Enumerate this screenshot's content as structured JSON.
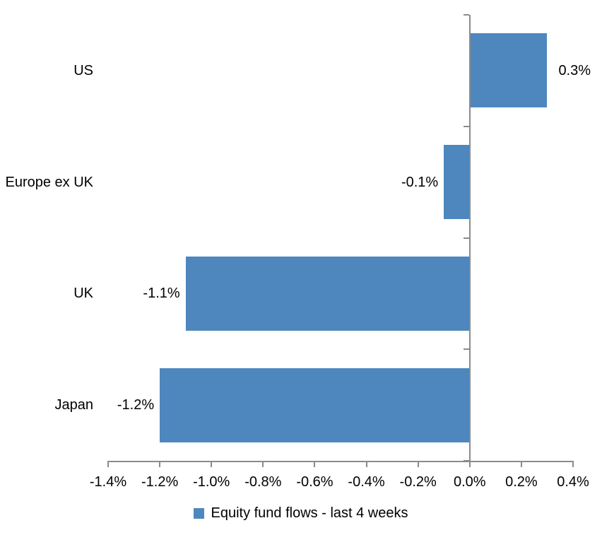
{
  "chart_data": {
    "type": "bar",
    "orientation": "horizontal",
    "title": "",
    "xlabel": "",
    "ylabel": "",
    "categories": [
      "US",
      "Europe ex UK",
      "UK",
      "Japan"
    ],
    "series": [
      {
        "name": "Equity fund flows - last 4 weeks",
        "values": [
          0.3,
          -0.1,
          -1.1,
          -1.2
        ],
        "value_labels": [
          "0.3%",
          "-0.1%",
          "-1.1%",
          "-1.2%"
        ]
      }
    ],
    "xlim": [
      -1.4,
      0.4
    ],
    "x_ticks": [
      -1.4,
      -1.2,
      -1.0,
      -0.8,
      -0.6,
      -0.4,
      -0.2,
      0.0,
      0.2,
      0.4
    ],
    "x_tick_labels": [
      "-1.4%",
      "-1.2%",
      "-1.0%",
      "-0.8%",
      "-0.6%",
      "-0.4%",
      "-0.2%",
      "0.0%",
      "0.2%",
      "0.4%"
    ],
    "legend": [
      "Equity fund flows - last 4 weeks"
    ],
    "legend_position": "bottom",
    "grid": false,
    "colors": {
      "bar": "#4D87BE",
      "axis": "#8B8B8B",
      "text": "#000000",
      "background": "#FFFFFF"
    }
  }
}
